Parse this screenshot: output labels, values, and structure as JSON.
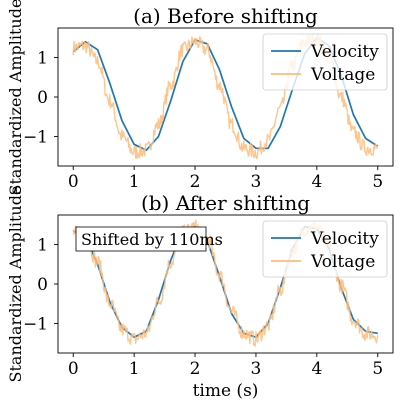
{
  "chart_data": [
    {
      "type": "line",
      "title": "(a) Before shifting",
      "xlabel": "",
      "ylabel": "Standardized Amplitude",
      "xlim": [
        -0.25,
        5.25
      ],
      "ylim": [
        -1.75,
        1.75
      ],
      "xticks": [
        0,
        1,
        2,
        3,
        4,
        5
      ],
      "yticks": [
        -1,
        0,
        1
      ],
      "ytick_labels": [
        "−1",
        "0",
        "1"
      ],
      "grid": false,
      "legend_position": "top-right",
      "series": [
        {
          "name": "Velocity",
          "color": "#1f77b4",
          "x": [
            0.0,
            0.2,
            0.4,
            0.6,
            0.8,
            1.0,
            1.2,
            1.4,
            1.6,
            1.8,
            2.0,
            2.2,
            2.4,
            2.6,
            2.8,
            3.0,
            3.2,
            3.4,
            3.6,
            3.8,
            4.0,
            4.2,
            4.4,
            4.6,
            4.8,
            5.0
          ],
          "y": [
            1.15,
            1.4,
            1.2,
            0.35,
            -0.6,
            -1.2,
            -1.35,
            -1.0,
            -0.1,
            0.9,
            1.45,
            1.35,
            0.7,
            -0.25,
            -1.05,
            -1.3,
            -1.3,
            -0.75,
            0.2,
            1.1,
            1.5,
            1.3,
            0.55,
            -0.45,
            -1.05,
            -1.25
          ]
        },
        {
          "name": "Voltage",
          "color": "#ffbb78",
          "x": [
            0.0,
            0.2,
            0.4,
            0.6,
            0.8,
            1.0,
            1.2,
            1.4,
            1.6,
            1.8,
            2.0,
            2.2,
            2.4,
            2.6,
            2.8,
            3.0,
            3.2,
            3.4,
            3.6,
            3.8,
            4.0,
            4.2,
            4.4,
            4.6,
            4.8,
            5.0
          ],
          "y": [
            1.25,
            1.3,
            0.9,
            -0.1,
            -1.0,
            -1.4,
            -1.35,
            -0.7,
            0.3,
            1.2,
            1.4,
            1.2,
            0.3,
            -0.7,
            -1.3,
            -1.4,
            -1.1,
            -0.3,
            0.8,
            1.4,
            1.45,
            1.0,
            0.0,
            -0.9,
            -1.3,
            -1.3
          ]
        }
      ]
    },
    {
      "type": "line",
      "title": "(b) After shifting",
      "xlabel": "time (s)",
      "ylabel": "Standardized Amplitude",
      "xlim": [
        -0.25,
        5.25
      ],
      "ylim": [
        -1.75,
        1.75
      ],
      "xticks": [
        0,
        1,
        2,
        3,
        4,
        5
      ],
      "yticks": [
        -1,
        0,
        1
      ],
      "ytick_labels": [
        "−1",
        "0",
        "1"
      ],
      "grid": false,
      "legend_position": "top-right",
      "annotation": "Shifted by 110ms",
      "series": [
        {
          "name": "Velocity",
          "color": "#1f77b4",
          "x": [
            0.0,
            0.2,
            0.4,
            0.6,
            0.8,
            1.0,
            1.2,
            1.4,
            1.6,
            1.8,
            2.0,
            2.2,
            2.4,
            2.6,
            2.8,
            3.0,
            3.2,
            3.4,
            3.6,
            3.8,
            4.0,
            4.2,
            4.4,
            4.6,
            4.8,
            5.0
          ],
          "y": [
            1.35,
            1.2,
            0.5,
            -0.45,
            -1.1,
            -1.35,
            -1.2,
            -0.4,
            0.6,
            1.35,
            1.45,
            1.1,
            0.2,
            -0.75,
            -1.25,
            -1.35,
            -1.0,
            -0.1,
            0.9,
            1.45,
            1.4,
            0.9,
            -0.1,
            -0.9,
            -1.2,
            -1.25
          ]
        },
        {
          "name": "Voltage",
          "color": "#ffbb78",
          "x": [
            0.0,
            0.2,
            0.4,
            0.6,
            0.8,
            1.0,
            1.2,
            1.4,
            1.6,
            1.8,
            2.0,
            2.2,
            2.4,
            2.6,
            2.8,
            3.0,
            3.2,
            3.4,
            3.6,
            3.8,
            4.0,
            4.2,
            4.4,
            4.6,
            4.8,
            5.0
          ],
          "y": [
            1.3,
            1.2,
            0.55,
            -0.5,
            -1.15,
            -1.4,
            -1.25,
            -0.45,
            0.55,
            1.3,
            1.45,
            1.15,
            0.25,
            -0.7,
            -1.25,
            -1.4,
            -1.05,
            -0.15,
            0.85,
            1.4,
            1.45,
            0.95,
            -0.05,
            -0.9,
            -1.25,
            -1.3
          ]
        }
      ]
    }
  ]
}
